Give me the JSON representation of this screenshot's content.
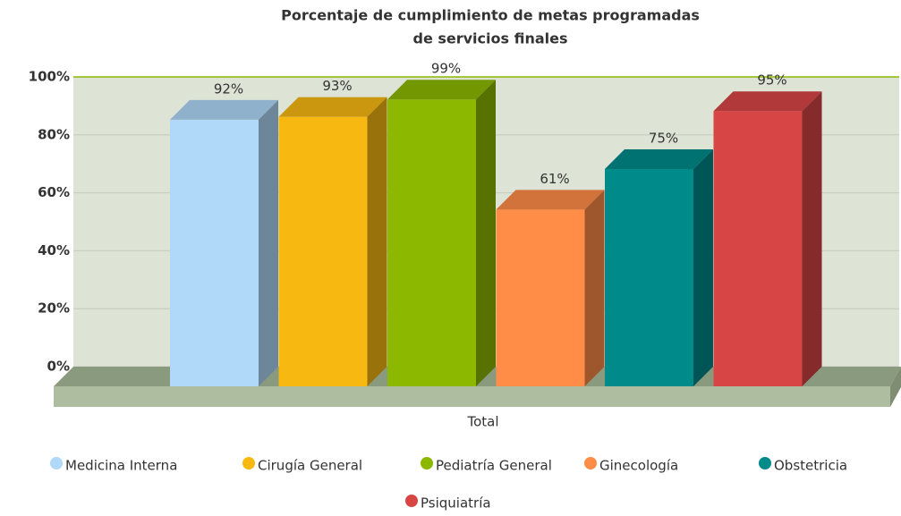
{
  "chart_data": {
    "type": "bar3d",
    "title": [
      "Porcentaje de cumplimiento de metas programadas",
      "de servicios finales"
    ],
    "categories": [
      "Total"
    ],
    "series": [
      {
        "name": "Medicina Interna",
        "color": "#b0d8f8",
        "values": [
          92
        ],
        "value_labels": [
          "92%"
        ]
      },
      {
        "name": "Cirugía General",
        "color": "#f7b811",
        "values": [
          93
        ],
        "value_labels": [
          "93%"
        ]
      },
      {
        "name": "Pediatría General",
        "color": "#8cb800",
        "values": [
          99
        ],
        "value_labels": [
          "99%"
        ]
      },
      {
        "name": "Ginecología",
        "color": "#ff8c47",
        "values": [
          61
        ],
        "value_labels": [
          "61%"
        ]
      },
      {
        "name": "Obstetricia",
        "color": "#008b8b",
        "values": [
          75
        ],
        "value_labels": [
          "75%"
        ]
      },
      {
        "name": "Psiquiatría",
        "color": "#d84545",
        "values": [
          95
        ],
        "value_labels": [
          "95%"
        ]
      }
    ],
    "ylim": [
      0,
      100
    ],
    "yticks": [
      {
        "value": 0,
        "label": "0%"
      },
      {
        "value": 20,
        "label": "20%"
      },
      {
        "value": 40,
        "label": "40%"
      },
      {
        "value": 60,
        "label": "60%"
      },
      {
        "value": 80,
        "label": "80%"
      },
      {
        "value": 100,
        "label": "100%"
      }
    ],
    "grid": true,
    "legend": "bottom"
  }
}
